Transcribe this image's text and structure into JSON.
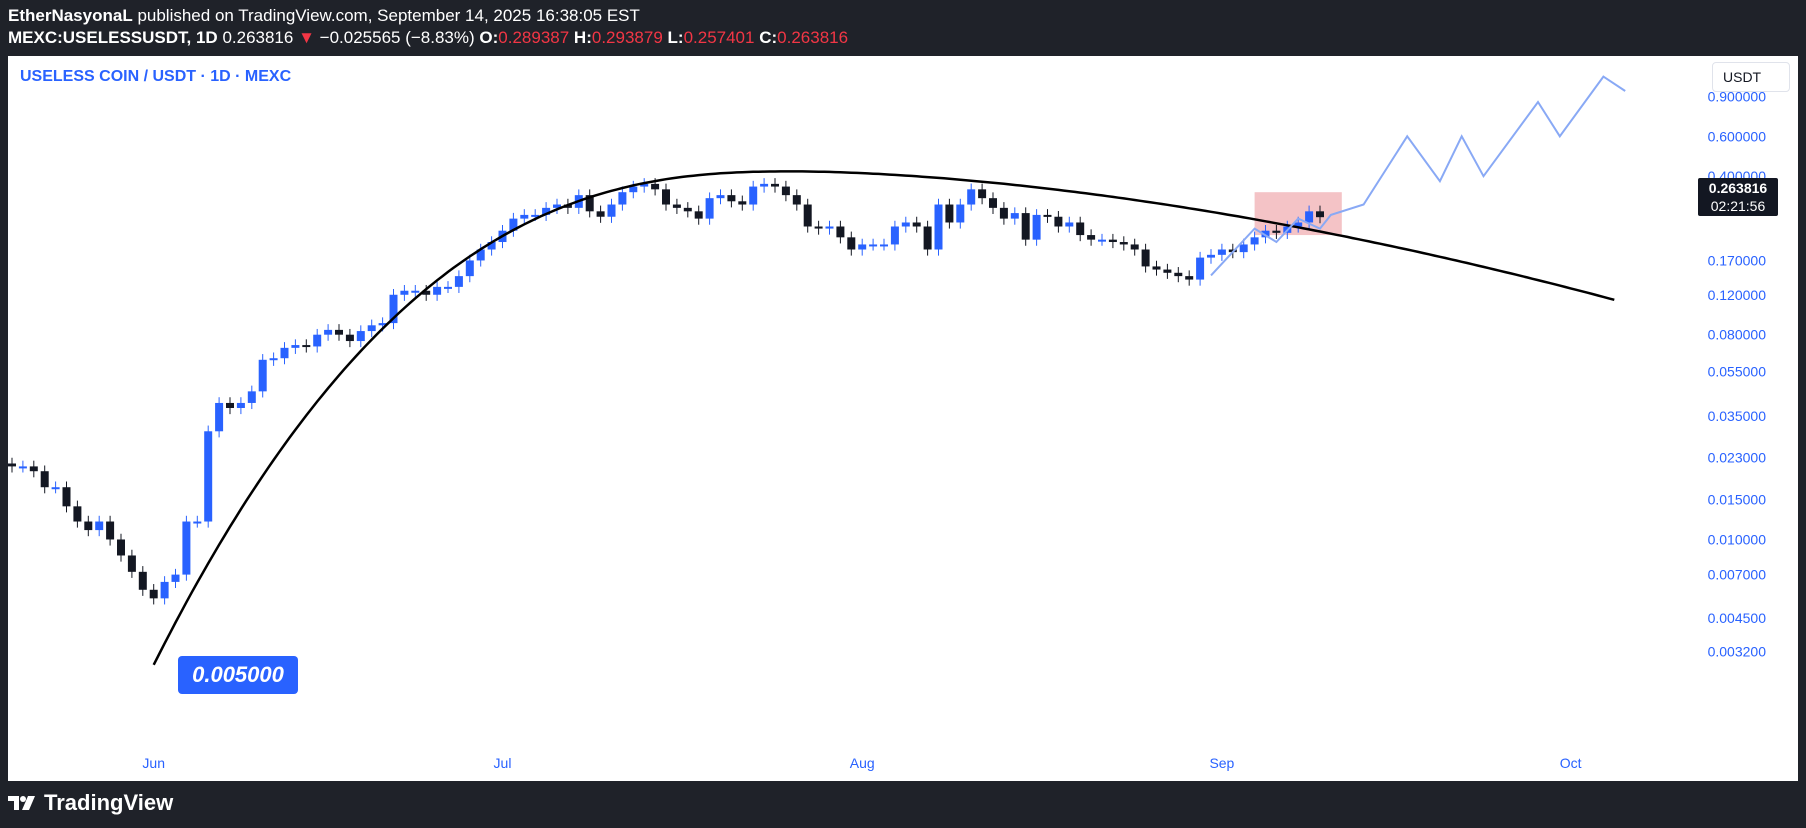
{
  "header": {
    "author": "EtherNasyonaL",
    "published": "published on TradingView.com, September 14, 2025 16:38:05 EST",
    "symbol": "MEXC:USELESSUSDT, 1D",
    "last": "0.263816",
    "arrow": "▼",
    "change": "−0.025565 (−8.83%)",
    "o_label": "O:",
    "o": "0.289387",
    "h_label": "H:",
    "h": "0.293879",
    "l_label": "L:",
    "l": "0.257401",
    "c_label": "C:",
    "c": "0.263816"
  },
  "chart_title": "USELESS COIN / USDT · 1D · MEXC",
  "unit_badge": "USDT",
  "last_price_tag": {
    "price": "0.263816",
    "countdown": "02:21:56"
  },
  "annotation": "0.005000",
  "brand": "TradingView",
  "colors": {
    "up": "#2962ff",
    "down": "#131722",
    "projection": "#89a9f5",
    "zone": "#f2b8bc",
    "text_up": "#2962ff",
    "header_bg": "#1f2229"
  },
  "chart_data": {
    "type": "candlestick",
    "title": "USELESS COIN / USDT · 1D · MEXC",
    "y_scale": "log",
    "ylim": [
      0.0025,
      1.2
    ],
    "y_ticks": [
      "0.900000",
      "0.600000",
      "0.400000",
      "0.170000",
      "0.120000",
      "0.080000",
      "0.055000",
      "0.035000",
      "0.023000",
      "0.015000",
      "0.010000",
      "0.007000",
      "0.004500",
      "0.003200"
    ],
    "y_tick_values": [
      0.9,
      0.6,
      0.4,
      0.17,
      0.12,
      0.08,
      0.055,
      0.035,
      0.023,
      0.015,
      0.01,
      0.007,
      0.0045,
      0.0032
    ],
    "x_ticks": [
      "Jun",
      "Jul",
      "Aug",
      "Sep",
      "Oct"
    ],
    "x_tick_day_index": [
      13,
      45,
      78,
      111,
      143
    ],
    "first_candle_day_index": 0,
    "last_candle_day_index": 120,
    "closes": [
      0.021,
      0.021,
      0.02,
      0.017,
      0.017,
      0.014,
      0.012,
      0.011,
      0.012,
      0.01,
      0.0085,
      0.0072,
      0.006,
      0.0055,
      0.0065,
      0.007,
      0.012,
      0.012,
      0.03,
      0.04,
      0.038,
      0.04,
      0.045,
      0.062,
      0.063,
      0.07,
      0.072,
      0.071,
      0.08,
      0.084,
      0.08,
      0.075,
      0.083,
      0.088,
      0.09,
      0.12,
      0.125,
      0.125,
      0.12,
      0.13,
      0.13,
      0.145,
      0.17,
      0.19,
      0.205,
      0.23,
      0.26,
      0.27,
      0.27,
      0.29,
      0.3,
      0.29,
      0.33,
      0.28,
      0.265,
      0.3,
      0.34,
      0.36,
      0.37,
      0.35,
      0.3,
      0.29,
      0.28,
      0.26,
      0.32,
      0.33,
      0.31,
      0.3,
      0.36,
      0.37,
      0.36,
      0.33,
      0.3,
      0.24,
      0.235,
      0.24,
      0.215,
      0.19,
      0.2,
      0.2,
      0.2,
      0.24,
      0.25,
      0.24,
      0.19,
      0.3,
      0.25,
      0.3,
      0.35,
      0.32,
      0.29,
      0.26,
      0.275,
      0.21,
      0.27,
      0.265,
      0.24,
      0.25,
      0.22,
      0.21,
      0.21,
      0.205,
      0.2,
      0.19,
      0.16,
      0.155,
      0.15,
      0.145,
      0.14,
      0.175,
      0.18,
      0.19,
      0.185,
      0.2,
      0.215,
      0.23,
      0.225,
      0.24,
      0.25,
      0.28,
      0.263816
    ],
    "projection_path": [
      [
        110,
        0.146
      ],
      [
        114,
        0.235
      ],
      [
        116,
        0.205
      ],
      [
        118,
        0.26
      ],
      [
        120,
        0.235
      ],
      [
        121,
        0.27
      ],
      [
        124,
        0.3
      ],
      [
        128,
        0.6
      ],
      [
        131,
        0.38
      ],
      [
        133,
        0.6
      ],
      [
        135,
        0.4
      ],
      [
        140,
        0.85
      ],
      [
        142,
        0.6
      ],
      [
        146,
        1.1
      ],
      [
        148,
        0.95
      ]
    ],
    "trend_arc": {
      "start_day": 13,
      "start_price": 0.0028,
      "peak_day": 72,
      "peak_price": 0.42,
      "end_day": 147,
      "end_price": 0.114
    },
    "zone": {
      "from_day": 114,
      "to_day": 122,
      "high": 0.34,
      "low": 0.22
    }
  }
}
